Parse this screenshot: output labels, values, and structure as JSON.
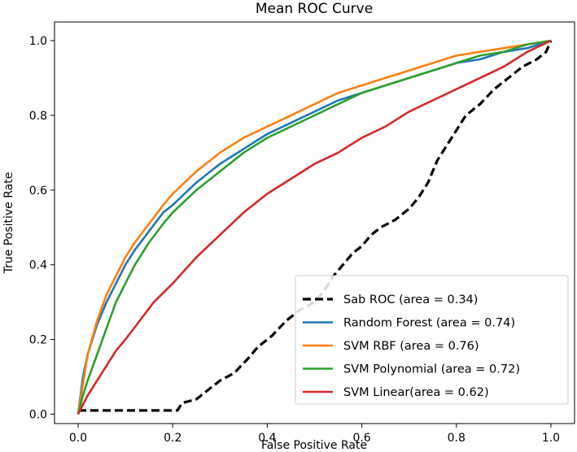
{
  "chart_data": {
    "type": "line",
    "title": "Mean ROC Curve",
    "xlabel": "False Positive Rate",
    "ylabel": "True Positive Rate",
    "xlim": [
      -0.05,
      1.05
    ],
    "ylim": [
      -0.025,
      1.05
    ],
    "grid": false,
    "legend_position": "lower-right",
    "xticks": [
      0.0,
      0.2,
      0.4,
      0.6,
      0.8,
      1.0
    ],
    "yticks": [
      0.0,
      0.2,
      0.4,
      0.6,
      0.8,
      1.0
    ],
    "xtick_labels": [
      "0.0",
      "0.2",
      "0.4",
      "0.6",
      "0.8",
      "1.0"
    ],
    "ytick_labels": [
      "0.0",
      "0.2",
      "0.4",
      "0.6",
      "0.8",
      "1.0"
    ],
    "series": [
      {
        "name": "Sab ROC (area = 0.34)",
        "color": "#000000",
        "style": "dashed",
        "points": [
          [
            0.0,
            0.01
          ],
          [
            0.05,
            0.01
          ],
          [
            0.1,
            0.01
          ],
          [
            0.15,
            0.01
          ],
          [
            0.2,
            0.01
          ],
          [
            0.21,
            0.01
          ],
          [
            0.22,
            0.03
          ],
          [
            0.25,
            0.04
          ],
          [
            0.28,
            0.07
          ],
          [
            0.3,
            0.09
          ],
          [
            0.33,
            0.11
          ],
          [
            0.36,
            0.15
          ],
          [
            0.38,
            0.18
          ],
          [
            0.41,
            0.21
          ],
          [
            0.44,
            0.25
          ],
          [
            0.47,
            0.28
          ],
          [
            0.5,
            0.3
          ],
          [
            0.52,
            0.33
          ],
          [
            0.54,
            0.37
          ],
          [
            0.56,
            0.4
          ],
          [
            0.58,
            0.43
          ],
          [
            0.6,
            0.45
          ],
          [
            0.62,
            0.48
          ],
          [
            0.64,
            0.5
          ],
          [
            0.67,
            0.52
          ],
          [
            0.7,
            0.55
          ],
          [
            0.72,
            0.58
          ],
          [
            0.74,
            0.62
          ],
          [
            0.76,
            0.68
          ],
          [
            0.78,
            0.72
          ],
          [
            0.8,
            0.76
          ],
          [
            0.82,
            0.8
          ],
          [
            0.85,
            0.83
          ],
          [
            0.88,
            0.87
          ],
          [
            0.91,
            0.9
          ],
          [
            0.94,
            0.93
          ],
          [
            0.97,
            0.95
          ],
          [
            0.99,
            0.97
          ],
          [
            1.0,
            1.0
          ]
        ]
      },
      {
        "name": "Random Forest (area = 0.74)",
        "color": "#1f77b4",
        "style": "solid",
        "points": [
          [
            0.0,
            0.0
          ],
          [
            0.01,
            0.1
          ],
          [
            0.02,
            0.16
          ],
          [
            0.04,
            0.24
          ],
          [
            0.06,
            0.3
          ],
          [
            0.08,
            0.35
          ],
          [
            0.1,
            0.4
          ],
          [
            0.12,
            0.44
          ],
          [
            0.15,
            0.49
          ],
          [
            0.18,
            0.54
          ],
          [
            0.2,
            0.56
          ],
          [
            0.25,
            0.62
          ],
          [
            0.3,
            0.67
          ],
          [
            0.35,
            0.71
          ],
          [
            0.4,
            0.75
          ],
          [
            0.45,
            0.78
          ],
          [
            0.5,
            0.81
          ],
          [
            0.55,
            0.84
          ],
          [
            0.6,
            0.86
          ],
          [
            0.65,
            0.88
          ],
          [
            0.7,
            0.9
          ],
          [
            0.75,
            0.92
          ],
          [
            0.8,
            0.94
          ],
          [
            0.85,
            0.95
          ],
          [
            0.9,
            0.97
          ],
          [
            0.95,
            0.98
          ],
          [
            1.0,
            1.0
          ]
        ]
      },
      {
        "name": "SVM RBF (area = 0.76)",
        "color": "#ff7f0e",
        "style": "solid",
        "points": [
          [
            0.0,
            0.0
          ],
          [
            0.01,
            0.08
          ],
          [
            0.02,
            0.16
          ],
          [
            0.04,
            0.25
          ],
          [
            0.06,
            0.32
          ],
          [
            0.08,
            0.37
          ],
          [
            0.1,
            0.42
          ],
          [
            0.12,
            0.46
          ],
          [
            0.15,
            0.51
          ],
          [
            0.18,
            0.56
          ],
          [
            0.2,
            0.59
          ],
          [
            0.25,
            0.65
          ],
          [
            0.3,
            0.7
          ],
          [
            0.35,
            0.74
          ],
          [
            0.4,
            0.77
          ],
          [
            0.45,
            0.8
          ],
          [
            0.5,
            0.83
          ],
          [
            0.55,
            0.86
          ],
          [
            0.6,
            0.88
          ],
          [
            0.65,
            0.9
          ],
          [
            0.7,
            0.92
          ],
          [
            0.75,
            0.94
          ],
          [
            0.8,
            0.96
          ],
          [
            0.85,
            0.97
          ],
          [
            0.9,
            0.98
          ],
          [
            0.95,
            0.99
          ],
          [
            1.0,
            1.0
          ]
        ]
      },
      {
        "name": "SVM Polynomial (area = 0.72)",
        "color": "#2ca02c",
        "style": "solid",
        "points": [
          [
            0.0,
            0.0
          ],
          [
            0.01,
            0.05
          ],
          [
            0.02,
            0.09
          ],
          [
            0.04,
            0.16
          ],
          [
            0.06,
            0.23
          ],
          [
            0.08,
            0.3
          ],
          [
            0.1,
            0.35
          ],
          [
            0.12,
            0.4
          ],
          [
            0.15,
            0.46
          ],
          [
            0.18,
            0.51
          ],
          [
            0.2,
            0.54
          ],
          [
            0.25,
            0.6
          ],
          [
            0.3,
            0.65
          ],
          [
            0.35,
            0.7
          ],
          [
            0.4,
            0.74
          ],
          [
            0.45,
            0.77
          ],
          [
            0.5,
            0.8
          ],
          [
            0.55,
            0.83
          ],
          [
            0.6,
            0.86
          ],
          [
            0.65,
            0.88
          ],
          [
            0.7,
            0.9
          ],
          [
            0.75,
            0.92
          ],
          [
            0.8,
            0.94
          ],
          [
            0.85,
            0.96
          ],
          [
            0.9,
            0.97
          ],
          [
            0.95,
            0.99
          ],
          [
            1.0,
            1.0
          ]
        ]
      },
      {
        "name": "SVM Linear(area = 0.62)",
        "color": "#d62728",
        "style": "solid",
        "points": [
          [
            0.0,
            0.0
          ],
          [
            0.02,
            0.05
          ],
          [
            0.04,
            0.09
          ],
          [
            0.06,
            0.13
          ],
          [
            0.08,
            0.17
          ],
          [
            0.1,
            0.2
          ],
          [
            0.13,
            0.25
          ],
          [
            0.16,
            0.3
          ],
          [
            0.2,
            0.35
          ],
          [
            0.25,
            0.42
          ],
          [
            0.3,
            0.48
          ],
          [
            0.35,
            0.54
          ],
          [
            0.4,
            0.59
          ],
          [
            0.45,
            0.63
          ],
          [
            0.5,
            0.67
          ],
          [
            0.55,
            0.7
          ],
          [
            0.6,
            0.74
          ],
          [
            0.65,
            0.77
          ],
          [
            0.7,
            0.81
          ],
          [
            0.75,
            0.84
          ],
          [
            0.8,
            0.87
          ],
          [
            0.85,
            0.9
          ],
          [
            0.9,
            0.93
          ],
          [
            0.95,
            0.97
          ],
          [
            1.0,
            1.0
          ]
        ]
      }
    ]
  }
}
